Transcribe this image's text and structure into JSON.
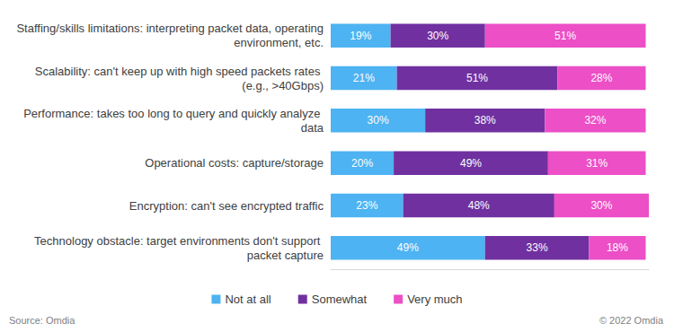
{
  "chart_data": {
    "type": "bar",
    "orientation": "horizontal",
    "stacked": true,
    "data_labels": true,
    "grid": false,
    "tick_labels": "y",
    "legend": "bottom",
    "categories": [
      "Staffing/skills limitations: interpreting packet data, operating environment, etc.",
      "Scalability: can't keep up with high speed packets rates (e.g., >40Gbps)",
      "Performance: takes too long to query and quickly analyze data",
      "Operational costs: capture/storage",
      "Encryption: can't see encrypted traffic",
      "Technology obstacle: target environments don't support packet capture"
    ],
    "xlim": [
      0,
      101
    ],
    "series": [
      {
        "name": "Not at all",
        "color": "#4db3f2",
        "values": [
          19,
          21,
          30,
          20,
          23,
          49
        ],
        "value_labels": [
          "19%",
          "21%",
          "30%",
          "20%",
          "23%",
          "49%"
        ]
      },
      {
        "name": "Somewhat",
        "color": "#7030a0",
        "values": [
          30,
          51,
          38,
          49,
          48,
          33
        ],
        "value_labels": [
          "30%",
          "51%",
          "38%",
          "49%",
          "48%",
          "33%"
        ]
      },
      {
        "name": "Very much",
        "color": "#ec4fc6",
        "values": [
          51,
          28,
          32,
          31,
          30,
          18
        ],
        "value_labels": [
          "51%",
          "28%",
          "32%",
          "31%",
          "30%",
          "18%"
        ]
      }
    ],
    "annotations": [
      "Source: Omdia",
      "© 2022 Omdia"
    ]
  }
}
